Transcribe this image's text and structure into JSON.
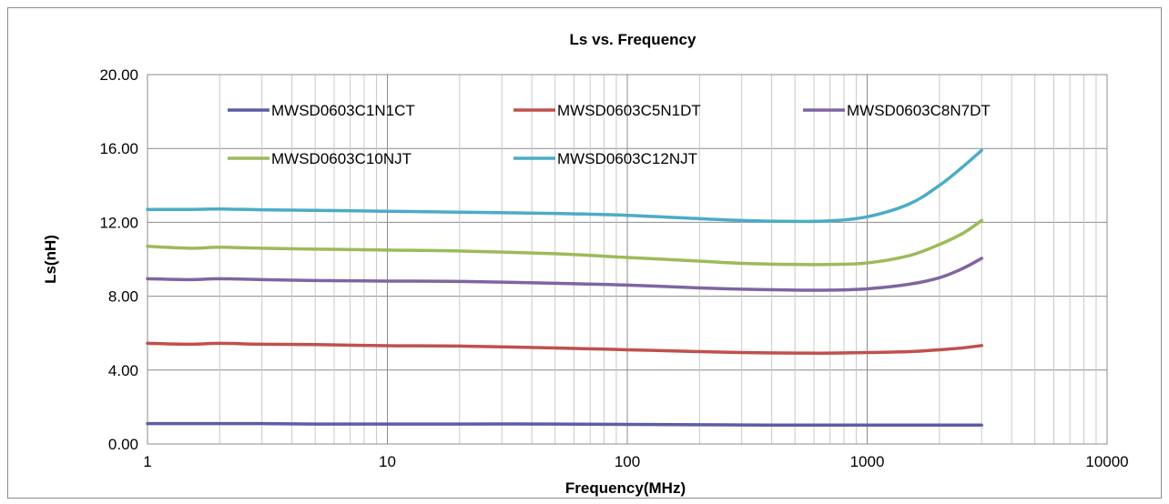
{
  "chart_data": {
    "type": "line",
    "title": "Ls  vs.  Frequency",
    "xlabel": "Frequency(MHz)",
    "ylabel": "Ls(nH)",
    "x_scale": "log",
    "xlim": [
      1,
      10000
    ],
    "ylim": [
      0,
      20
    ],
    "x_ticks": [
      "1",
      "10",
      "100",
      "1000",
      "10000"
    ],
    "y_ticks": [
      "0.00",
      "4.00",
      "8.00",
      "12.00",
      "16.00",
      "20.00"
    ],
    "grid": true,
    "legend_position": "top-inside",
    "x": [
      1,
      1.5,
      2,
      3,
      5,
      10,
      20,
      50,
      100,
      200,
      300,
      500,
      700,
      1000,
      1500,
      2000,
      2500,
      3000
    ],
    "series": [
      {
        "name": "MWSD0603C1N1CT",
        "color": "#5b5ea6",
        "values": [
          1.1,
          1.1,
          1.1,
          1.1,
          1.08,
          1.08,
          1.08,
          1.08,
          1.06,
          1.04,
          1.03,
          1.02,
          1.02,
          1.02,
          1.02,
          1.02,
          1.02,
          1.02
        ]
      },
      {
        "name": "MWSD0603C5N1DT",
        "color": "#c0504d",
        "values": [
          5.45,
          5.4,
          5.45,
          5.4,
          5.38,
          5.32,
          5.3,
          5.2,
          5.1,
          5.0,
          4.95,
          4.92,
          4.92,
          4.95,
          5.0,
          5.1,
          5.2,
          5.33
        ]
      },
      {
        "name": "MWSD0603C8N7DT",
        "color": "#8064a2",
        "values": [
          8.95,
          8.9,
          8.95,
          8.9,
          8.85,
          8.82,
          8.8,
          8.7,
          8.6,
          8.45,
          8.38,
          8.33,
          8.33,
          8.4,
          8.65,
          9.0,
          9.5,
          10.05
        ]
      },
      {
        "name": "MWSD0603C10NJT",
        "color": "#9bbb59",
        "values": [
          10.7,
          10.6,
          10.65,
          10.6,
          10.55,
          10.5,
          10.45,
          10.3,
          10.1,
          9.9,
          9.78,
          9.72,
          9.72,
          9.8,
          10.2,
          10.8,
          11.4,
          12.1
        ]
      },
      {
        "name": "MWSD0603C12NJT",
        "color": "#4bacc6",
        "values": [
          12.7,
          12.7,
          12.72,
          12.68,
          12.65,
          12.6,
          12.55,
          12.48,
          12.38,
          12.2,
          12.1,
          12.05,
          12.08,
          12.3,
          13.0,
          14.0,
          15.0,
          15.9
        ]
      }
    ]
  }
}
